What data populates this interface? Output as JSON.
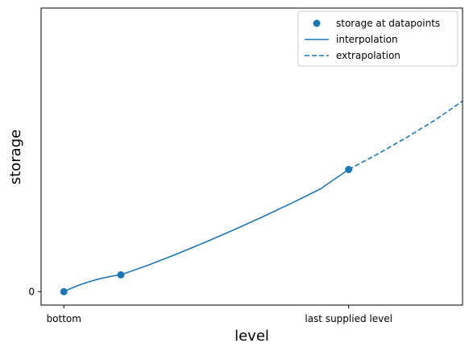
{
  "chart_data": {
    "type": "line",
    "xlabel": "level",
    "ylabel": "storage",
    "x_ticks": [
      {
        "value": 0,
        "label": "bottom"
      },
      {
        "value": 5,
        "label": "last supplied level"
      }
    ],
    "y_ticks": [
      {
        "value": 0,
        "label": "0"
      }
    ],
    "xlim": [
      -0.4,
      7.0
    ],
    "ylim": [
      -0.12,
      2.53
    ],
    "grid": false,
    "legend": {
      "position": "top-right",
      "entries": [
        {
          "label": "storage at datapoints",
          "style": "marker"
        },
        {
          "label": "interpolation",
          "style": "solid"
        },
        {
          "label": "extrapolation",
          "style": "dashed"
        }
      ]
    },
    "colors": {
      "series": "#1f77b4",
      "axes": "#000000",
      "legend_border": "#cccccc"
    },
    "series": [
      {
        "name": "storage at datapoints",
        "kind": "scatter",
        "x": [
          0,
          1,
          5
        ],
        "y": [
          0,
          0.15,
          1.09
        ]
      },
      {
        "name": "interpolation",
        "kind": "line",
        "style": "solid",
        "x": [
          0,
          0.1,
          0.2,
          0.3,
          0.4,
          0.5,
          0.6,
          0.7,
          0.8,
          0.9,
          1.0,
          1.5,
          2.0,
          2.5,
          3.0,
          3.5,
          4.0,
          4.5,
          5.0
        ],
        "y": [
          0,
          0.024,
          0.045,
          0.064,
          0.081,
          0.097,
          0.111,
          0.123,
          0.134,
          0.143,
          0.15,
          0.24,
          0.34,
          0.445,
          0.555,
          0.67,
          0.79,
          0.915,
          1.09
        ]
      },
      {
        "name": "extrapolation",
        "kind": "line",
        "style": "dashed",
        "x": [
          5.0,
          5.5,
          6.0,
          6.5,
          7.0
        ],
        "y": [
          1.09,
          1.225,
          1.37,
          1.525,
          1.7
        ]
      }
    ]
  }
}
